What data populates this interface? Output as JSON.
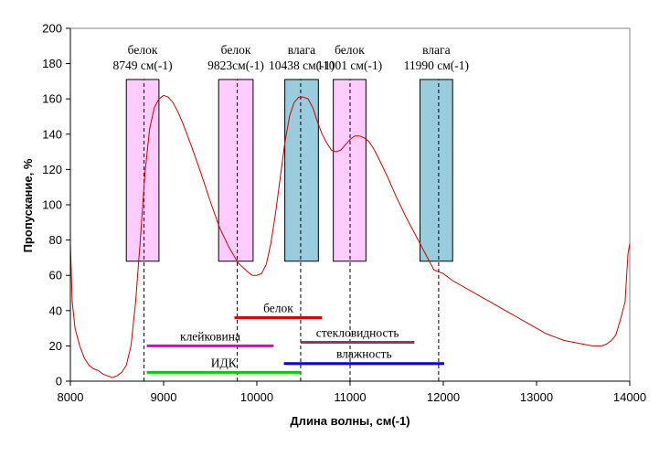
{
  "chart_data": {
    "type": "line",
    "xlabel": "Длина волны, см(-1)",
    "ylabel": "Пропускание, %",
    "xlim": [
      8000,
      14000
    ],
    "ylim": [
      0,
      200
    ],
    "x_ticks": [
      8000,
      9000,
      10000,
      11000,
      12000,
      13000,
      14000
    ],
    "y_ticks": [
      0,
      20,
      40,
      60,
      80,
      100,
      120,
      140,
      160,
      180,
      200
    ],
    "grid": false,
    "series": [
      {
        "color": "#cc0000",
        "x": [
          8000,
          8020,
          8050,
          8100,
          8150,
          8200,
          8250,
          8300,
          8350,
          8400,
          8450,
          8500,
          8550,
          8600,
          8650,
          8700,
          8750,
          8800,
          8850,
          8900,
          8950,
          9000,
          9050,
          9100,
          9150,
          9200,
          9300,
          9400,
          9500,
          9600,
          9700,
          9800,
          9900,
          9950,
          10000,
          10050,
          10100,
          10150,
          10200,
          10250,
          10300,
          10350,
          10400,
          10450,
          10500,
          10550,
          10600,
          10650,
          10700,
          10750,
          10800,
          10850,
          10900,
          10950,
          11000,
          11050,
          11100,
          11150,
          11200,
          11250,
          11300,
          11400,
          11500,
          11600,
          11700,
          11800,
          11900,
          12000,
          12100,
          12200,
          12300,
          12400,
          12500,
          12600,
          12700,
          12800,
          12900,
          13000,
          13100,
          13200,
          13300,
          13400,
          13500,
          13600,
          13650,
          13700,
          13750,
          13800,
          13850,
          13900,
          13950,
          13980,
          14000
        ],
        "y": [
          78,
          45,
          30,
          20,
          13,
          9,
          7,
          6,
          4,
          3,
          2,
          3,
          5,
          9,
          20,
          45,
          80,
          118,
          143,
          155,
          160,
          162,
          161,
          158,
          153,
          147,
          133,
          118,
          102,
          87,
          76,
          67,
          62,
          60,
          60,
          61,
          66,
          78,
          95,
          115,
          135,
          150,
          158,
          161,
          161,
          160,
          155,
          147,
          140,
          135,
          131,
          130,
          131,
          134,
          137,
          139,
          139,
          138,
          136,
          132,
          127,
          116,
          104,
          93,
          83,
          73,
          63,
          61,
          57,
          54,
          51,
          48,
          45,
          42,
          39,
          36,
          33,
          30,
          27,
          25,
          23,
          22,
          21,
          20,
          20,
          20,
          21,
          23,
          26,
          35,
          45,
          72,
          78
        ]
      }
    ],
    "boxes": [
      {
        "x_from": 8600,
        "x_to": 8950,
        "y_from": 68,
        "y_to": 171,
        "fill": "#ffccff",
        "line_x": 8790,
        "label_line1": "белок",
        "label_line2": "8749 см(-1)"
      },
      {
        "x_from": 9590,
        "x_to": 9960,
        "y_from": 68,
        "y_to": 171,
        "fill": "#ffccff",
        "line_x": 9790,
        "label_line1": "белок",
        "label_line2": "9823см(-1)"
      },
      {
        "x_from": 10300,
        "x_to": 10660,
        "y_from": 68,
        "y_to": 171,
        "fill": "#99ccdd",
        "line_x": 10470,
        "label_line1": "влага",
        "label_line2": "10438 см(-1)"
      },
      {
        "x_from": 10820,
        "x_to": 11170,
        "y_from": 68,
        "y_to": 171,
        "fill": "#ffccff",
        "line_x": 11000,
        "label_line1": "белок",
        "label_line2": "11001 см(-1)"
      },
      {
        "x_from": 11750,
        "x_to": 12100,
        "y_from": 68,
        "y_to": 171,
        "fill": "#99ccdd",
        "line_x": 11950,
        "label_line1": "влага",
        "label_line2": "11990 см(-1)"
      }
    ],
    "ranges": [
      {
        "label": "белок",
        "x_from": 9760,
        "x_to": 10700,
        "y": 36,
        "color": "#dd0000"
      },
      {
        "label": "клейковина",
        "x_from": 8820,
        "x_to": 10180,
        "y": 20,
        "color": "#dd00cc"
      },
      {
        "label": "стекловидность",
        "x_from": 10470,
        "x_to": 11690,
        "y": 22,
        "color": "#993366"
      },
      {
        "label": "влажность",
        "x_from": 10290,
        "x_to": 12010,
        "y": 10,
        "color": "#0000dd"
      },
      {
        "label": "ИДК",
        "x_from": 8820,
        "x_to": 10470,
        "y": 5,
        "color": "#00cc00"
      }
    ]
  }
}
